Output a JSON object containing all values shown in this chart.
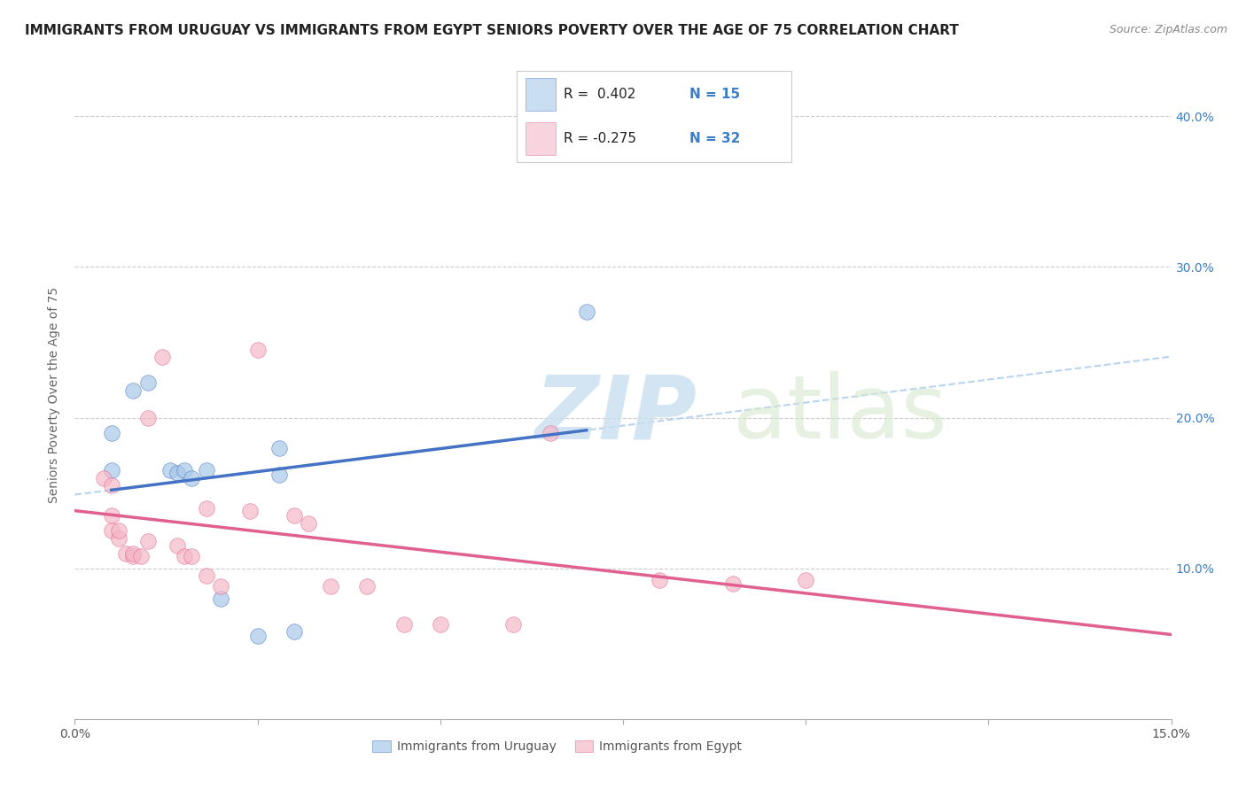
{
  "title": "IMMIGRANTS FROM URUGUAY VS IMMIGRANTS FROM EGYPT SENIORS POVERTY OVER THE AGE OF 75 CORRELATION CHART",
  "source": "Source: ZipAtlas.com",
  "ylabel": "Seniors Poverty Over the Age of 75",
  "xlim": [
    0.0,
    0.15
  ],
  "ylim": [
    0.0,
    0.43
  ],
  "watermark_zip": "ZIP",
  "watermark_atlas": "atlas",
  "uruguay_color": "#a8c8e8",
  "uruguay_line_color": "#4472c4",
  "egypt_color": "#f4b8c8",
  "egypt_line_color": "#e06090",
  "dashed_line_color": "#b8d4ee",
  "uruguay_scatter": [
    [
      0.005,
      0.165
    ],
    [
      0.005,
      0.19
    ],
    [
      0.008,
      0.218
    ],
    [
      0.01,
      0.223
    ],
    [
      0.013,
      0.165
    ],
    [
      0.014,
      0.163
    ],
    [
      0.015,
      0.165
    ],
    [
      0.016,
      0.16
    ],
    [
      0.018,
      0.165
    ],
    [
      0.02,
      0.08
    ],
    [
      0.025,
      0.055
    ],
    [
      0.03,
      0.058
    ],
    [
      0.07,
      0.27
    ],
    [
      0.028,
      0.18
    ],
    [
      0.028,
      0.162
    ]
  ],
  "egypt_scatter": [
    [
      0.004,
      0.16
    ],
    [
      0.005,
      0.155
    ],
    [
      0.005,
      0.135
    ],
    [
      0.005,
      0.125
    ],
    [
      0.006,
      0.12
    ],
    [
      0.006,
      0.125
    ],
    [
      0.007,
      0.11
    ],
    [
      0.008,
      0.108
    ],
    [
      0.008,
      0.11
    ],
    [
      0.009,
      0.108
    ],
    [
      0.01,
      0.118
    ],
    [
      0.01,
      0.2
    ],
    [
      0.012,
      0.24
    ],
    [
      0.014,
      0.115
    ],
    [
      0.015,
      0.108
    ],
    [
      0.016,
      0.108
    ],
    [
      0.018,
      0.14
    ],
    [
      0.018,
      0.095
    ],
    [
      0.02,
      0.088
    ],
    [
      0.024,
      0.138
    ],
    [
      0.025,
      0.245
    ],
    [
      0.03,
      0.135
    ],
    [
      0.032,
      0.13
    ],
    [
      0.035,
      0.088
    ],
    [
      0.04,
      0.088
    ],
    [
      0.045,
      0.063
    ],
    [
      0.05,
      0.063
    ],
    [
      0.06,
      0.063
    ],
    [
      0.065,
      0.19
    ],
    [
      0.08,
      0.092
    ],
    [
      0.09,
      0.09
    ],
    [
      0.1,
      0.092
    ]
  ],
  "title_fontsize": 11,
  "label_fontsize": 10,
  "tick_fontsize": 10,
  "source_fontsize": 9,
  "background_color": "#ffffff",
  "grid_color": "#cccccc",
  "legend_R_blue": "R =  0.402",
  "legend_N_blue": "N = 15",
  "legend_R_pink": "R = -0.275",
  "legend_N_pink": "N = 32",
  "bottom_legend_uruguay": "Immigrants from Uruguay",
  "bottom_legend_egypt": "Immigrants from Egypt",
  "ytick_values": [
    0.1,
    0.2,
    0.3,
    0.4
  ],
  "ytick_labels": [
    "10.0%",
    "20.0%",
    "30.0%",
    "40.0%"
  ]
}
